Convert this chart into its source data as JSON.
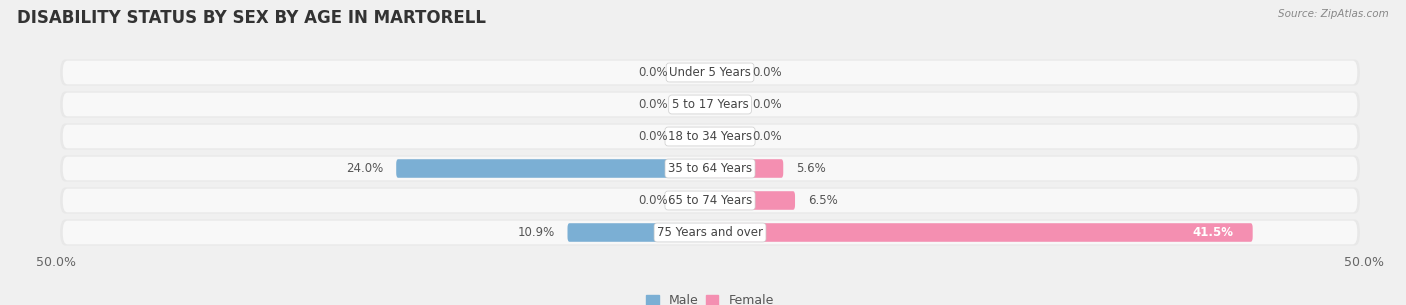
{
  "title": "DISABILITY STATUS BY SEX BY AGE IN MARTORELL",
  "source": "Source: ZipAtlas.com",
  "categories": [
    "Under 5 Years",
    "5 to 17 Years",
    "18 to 34 Years",
    "35 to 64 Years",
    "65 to 74 Years",
    "75 Years and over"
  ],
  "male_values": [
    0.0,
    0.0,
    0.0,
    24.0,
    0.0,
    10.9
  ],
  "female_values": [
    0.0,
    0.0,
    0.0,
    5.6,
    6.5,
    41.5
  ],
  "male_color": "#7bafd4",
  "female_color": "#f48fb1",
  "bar_height": 0.58,
  "xlim": 50.0,
  "background_color": "#f0f0f0",
  "row_color": "#e8e8e8",
  "row_inner_color": "#f8f8f8",
  "title_fontsize": 12,
  "label_fontsize": 9,
  "tick_fontsize": 9,
  "legend_fontsize": 9,
  "cat_label_fontsize": 8.5,
  "value_label_fontsize": 8.5
}
